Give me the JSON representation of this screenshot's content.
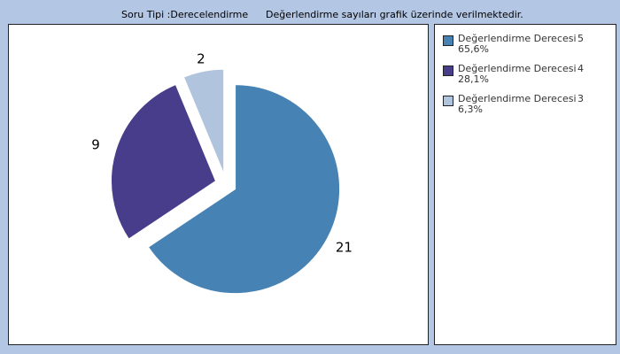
{
  "header": {
    "type_label": "Soru Tipi :Derecelendirme",
    "note": "Değerlendirme sayıları grafik üzerinde verilmektedir."
  },
  "colors": {
    "background": "#b3c6e4",
    "slice_5": "#4682b4",
    "slice_4": "#483d8b",
    "slice_3": "#b0c4de"
  },
  "chart_data": {
    "type": "pie",
    "categories": [
      "Değerlendirme Derecesi 5",
      "Değerlendirme Derecesi 4",
      "Değerlendirme Derecesi 3"
    ],
    "values": [
      21,
      9,
      2
    ],
    "percentages": [
      "65,6%",
      "28,1%",
      "6,3%"
    ],
    "legend": [
      {
        "label": "Değerlendirme Derecesi",
        "grade": "5",
        "pct": "65,6%",
        "color": "#4682b4"
      },
      {
        "label": "Değerlendirme Derecesi",
        "grade": "4",
        "pct": "28,1%",
        "color": "#483d8b"
      },
      {
        "label": "Değerlendirme Derecesi",
        "grade": "3",
        "pct": "6,3%",
        "color": "#b0c4de"
      }
    ],
    "data_labels": [
      "21",
      "9",
      "2"
    ],
    "legend_position": "right"
  }
}
